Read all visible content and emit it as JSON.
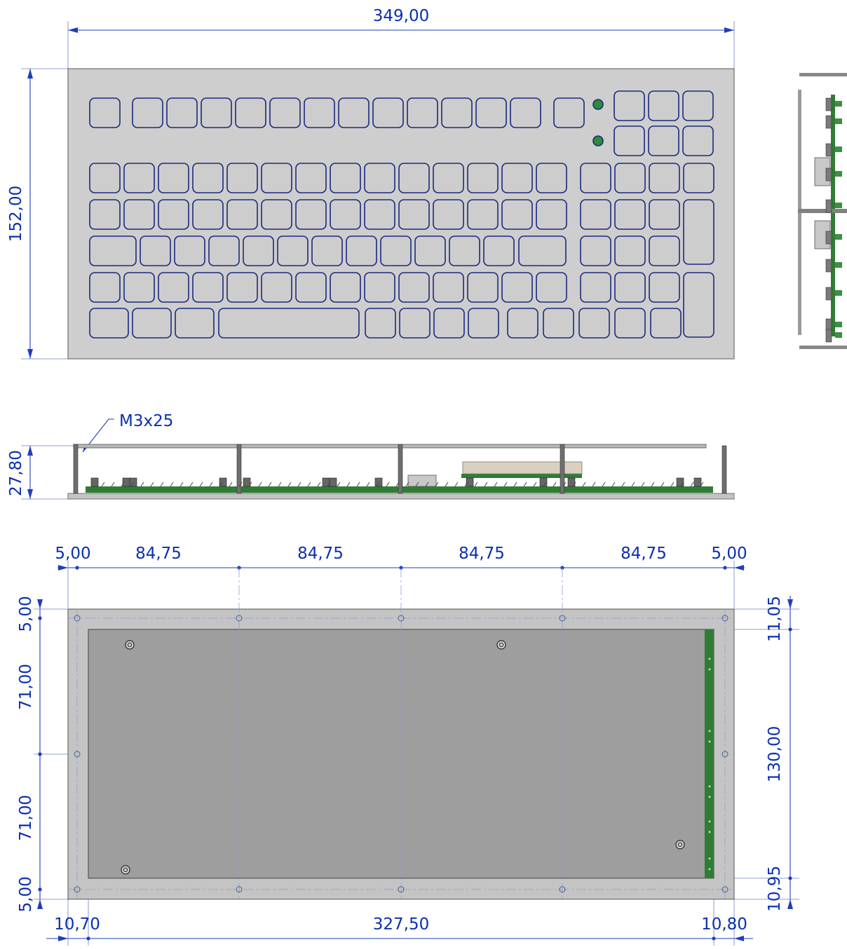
{
  "top_view": {
    "width_label": "349,00",
    "height_label": "152,00"
  },
  "side_view": {
    "screw_label": "M3x25",
    "height_label": "27,80"
  },
  "bottom_view": {
    "top_dims": [
      "5,00",
      "84,75",
      "84,75",
      "84,75",
      "84,75",
      "5,00"
    ],
    "left_dims": [
      "5,00",
      "71,00",
      "71,00",
      "5,00"
    ],
    "right_dims": [
      "11,05",
      "130,00",
      "10,95"
    ],
    "bottom_dims": [
      "10,70",
      "327,50",
      "10,80"
    ]
  },
  "colors": {
    "dimension": "#0b2fb0",
    "plate": "#cecece",
    "pcb": "#2f7d34",
    "key_outline": "#1c2a7d",
    "led": "#2e8b3a"
  }
}
